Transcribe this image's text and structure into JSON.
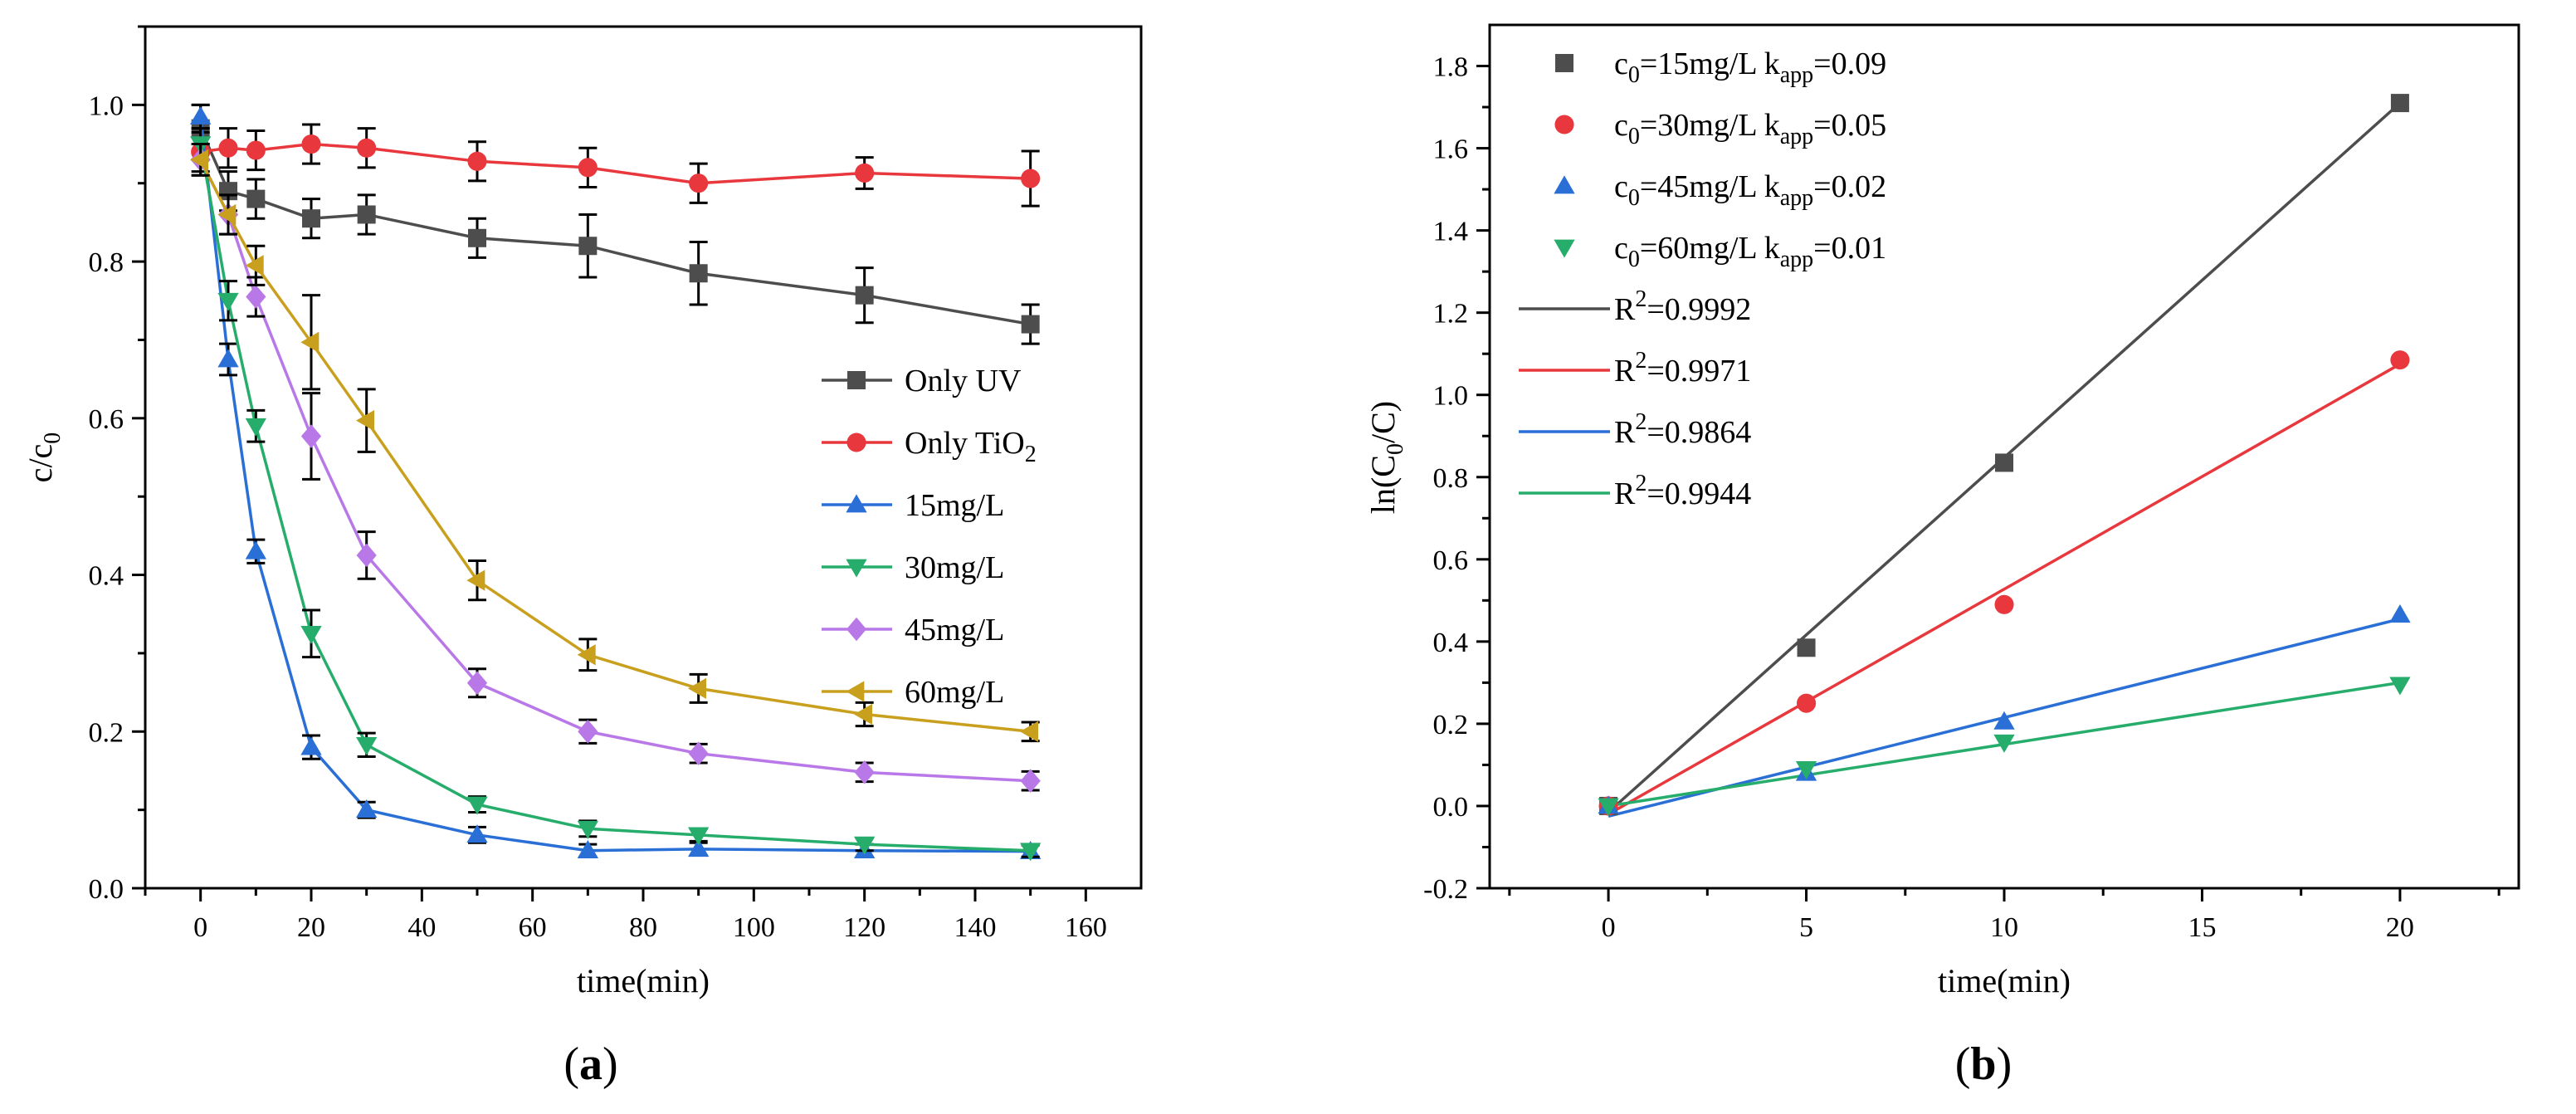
{
  "chart_data": [
    {
      "panel_label": "a",
      "type": "line",
      "xlabel": "time(min)",
      "ylabel": "c/c0",
      "xlim": [
        -10,
        170
      ],
      "ylim": [
        0,
        1.1
      ],
      "x_ticks": [
        0,
        20,
        40,
        60,
        80,
        100,
        120,
        140,
        160
      ],
      "y_ticks": [
        0.0,
        0.2,
        0.4,
        0.6,
        0.8,
        1.0
      ],
      "legend_position": "right",
      "series": [
        {
          "name": "Only UV",
          "color": "#4d4d4d",
          "marker": "square",
          "x": [
            0,
            5,
            10,
            20,
            30,
            50,
            70,
            90,
            120,
            150
          ],
          "y": [
            0.97,
            0.89,
            0.88,
            0.855,
            0.86,
            0.83,
            0.82,
            0.785,
            0.757,
            0.72
          ],
          "err": [
            0.03,
            0.025,
            0.025,
            0.025,
            0.025,
            0.025,
            0.04,
            0.04,
            0.035,
            0.025
          ]
        },
        {
          "name": "Only TiO2",
          "color": "#e8383d",
          "marker": "circle",
          "x": [
            0,
            5,
            10,
            20,
            30,
            50,
            70,
            90,
            120,
            150
          ],
          "y": [
            0.94,
            0.945,
            0.942,
            0.95,
            0.945,
            0.928,
            0.92,
            0.9,
            0.913,
            0.906
          ],
          "err": [
            0.025,
            0.025,
            0.025,
            0.025,
            0.025,
            0.025,
            0.025,
            0.025,
            0.02,
            0.035
          ]
        },
        {
          "name": "15mg/L",
          "color": "#2a6fd6",
          "marker": "triangle-up",
          "x": [
            0,
            5,
            10,
            20,
            30,
            50,
            70,
            90,
            120,
            150
          ],
          "y": [
            0.985,
            0.675,
            0.43,
            0.18,
            0.1,
            0.068,
            0.048,
            0.05,
            0.048,
            0.047
          ],
          "err": [
            0.015,
            0.02,
            0.015,
            0.015,
            0.01,
            0.01,
            0.008,
            0.008,
            0.008,
            0.008
          ]
        },
        {
          "name": "30mg/L",
          "color": "#27ad6b",
          "marker": "triangle-down",
          "x": [
            0,
            5,
            10,
            20,
            30,
            50,
            70,
            90,
            120,
            150
          ],
          "y": [
            0.95,
            0.75,
            0.59,
            0.325,
            0.183,
            0.107,
            0.076,
            0.068,
            0.056,
            0.048
          ],
          "err": [
            0.02,
            0.025,
            0.02,
            0.03,
            0.015,
            0.01,
            0.01,
            0.008,
            0.008,
            0.008
          ]
        },
        {
          "name": "45mg/L",
          "color": "#b978e8",
          "marker": "diamond",
          "x": [
            0,
            5,
            10,
            20,
            30,
            50,
            70,
            90,
            120,
            150
          ],
          "y": [
            0.93,
            0.86,
            0.755,
            0.577,
            0.425,
            0.262,
            0.2,
            0.172,
            0.148,
            0.137
          ],
          "err": [
            0.02,
            0.025,
            0.025,
            0.055,
            0.03,
            0.018,
            0.015,
            0.012,
            0.012,
            0.012
          ]
        },
        {
          "name": "60mg/L",
          "color": "#c9a01e",
          "marker": "triangle-left",
          "x": [
            0,
            5,
            10,
            20,
            30,
            50,
            70,
            90,
            120,
            150
          ],
          "y": [
            0.93,
            0.86,
            0.795,
            0.697,
            0.597,
            0.393,
            0.298,
            0.255,
            0.222,
            0.2
          ],
          "err": [
            0.02,
            0.025,
            0.025,
            0.06,
            0.04,
            0.025,
            0.02,
            0.018,
            0.015,
            0.012
          ]
        }
      ]
    },
    {
      "panel_label": "b",
      "type": "scatter",
      "xlabel": "time(min)",
      "ylabel": "ln(C0/C)",
      "xlim": [
        -3,
        23
      ],
      "ylim": [
        -0.2,
        1.9
      ],
      "x_ticks": [
        0,
        5,
        10,
        15,
        20
      ],
      "y_ticks": [
        -0.2,
        0.0,
        0.2,
        0.4,
        0.6,
        0.8,
        1.0,
        1.2,
        1.4,
        1.6,
        1.8
      ],
      "legend_position": "top-left",
      "series": [
        {
          "name": "c0=15mg/L  kapp=0.09",
          "c0": "15mg/L",
          "kapp": "0.09",
          "color": "#4d4d4d",
          "marker": "square",
          "x": [
            0,
            5,
            10,
            20
          ],
          "y": [
            0.0,
            0.385,
            0.835,
            1.71
          ]
        },
        {
          "name": "c0=30mg/L  kapp=0.05",
          "c0": "30mg/L",
          "kapp": "0.05",
          "color": "#e8383d",
          "marker": "circle",
          "x": [
            0,
            5,
            10,
            20
          ],
          "y": [
            0.0,
            0.25,
            0.49,
            1.085
          ]
        },
        {
          "name": "c0=45mg/L  kapp=0.02",
          "c0": "45mg/L",
          "kapp": "0.02",
          "color": "#2a6fd6",
          "marker": "triangle-up",
          "x": [
            0,
            5,
            10,
            20
          ],
          "y": [
            0.0,
            0.08,
            0.205,
            0.465
          ]
        },
        {
          "name": "c0=60mg/L  kapp=0.01",
          "c0": "60mg/L",
          "kapp": "0.01",
          "color": "#27ad6b",
          "marker": "triangle-down",
          "x": [
            0,
            5,
            10,
            20
          ],
          "y": [
            0.0,
            0.09,
            0.155,
            0.295
          ]
        }
      ],
      "fits": [
        {
          "name": "R2=0.9992",
          "r2": "0.9992",
          "color": "#4d4d4d",
          "x": [
            0,
            20
          ],
          "y": [
            -0.015,
            1.71
          ]
        },
        {
          "name": "R2=0.9971",
          "r2": "0.9971",
          "color": "#e8383d",
          "x": [
            0,
            20
          ],
          "y": [
            -0.02,
            1.075
          ]
        },
        {
          "name": "R2=0.9864",
          "r2": "0.9864",
          "color": "#2a6fd6",
          "x": [
            0,
            20
          ],
          "y": [
            -0.025,
            0.455
          ]
        },
        {
          "name": "R2=0.9944",
          "r2": "0.9944",
          "color": "#27ad6b",
          "x": [
            0,
            20
          ],
          "y": [
            0.0,
            0.3
          ]
        }
      ]
    }
  ]
}
